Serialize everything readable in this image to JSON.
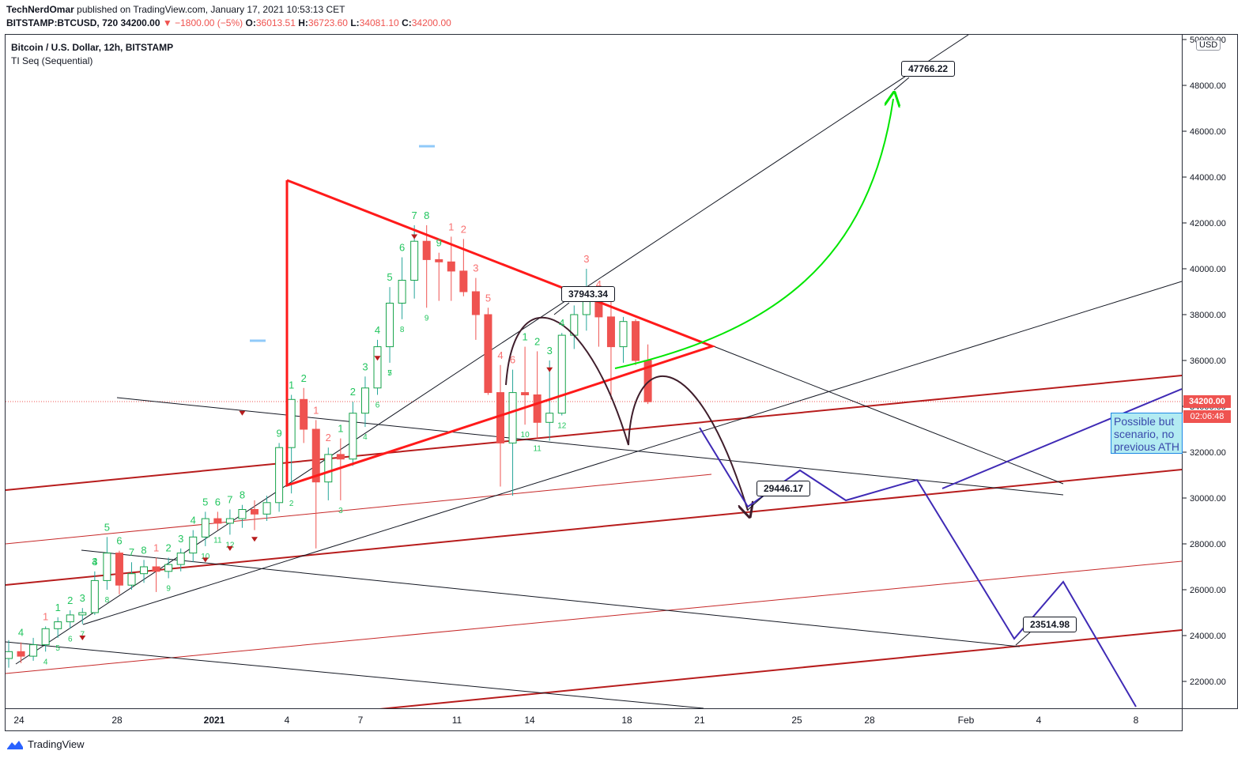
{
  "header": {
    "author": "TechNerdOmar",
    "published": "published on TradingView.com, January 17, 2021 10:53:13 CET",
    "symbol": "BITSTAMP:BTCUSD, 720",
    "last": "34200.00",
    "change": "▼ −1800.00 (−5%)",
    "o_label": "O:",
    "o": "36013.51",
    "h_label": "H:",
    "h": "36723.60",
    "l_label": "L:",
    "l": "34081.10",
    "c_label": "C:",
    "c": "34200.00"
  },
  "pane": {
    "title": "Bitcoin / U.S. Dollar, 12h, BITSTAMP",
    "indicator": "TI Seq (Sequential)"
  },
  "axis": {
    "currency": "USD",
    "y_ticks": [
      "50000.00",
      "48000.00",
      "46000.00",
      "44000.00",
      "42000.00",
      "40000.00",
      "38000.00",
      "36000.00",
      "34000.00",
      "32000.00",
      "30000.00",
      "28000.00",
      "26000.00",
      "24000.00",
      "22000.00"
    ],
    "x_ticks": [
      "24",
      "28",
      "2021",
      "4",
      "7",
      "11",
      "14",
      "18",
      "21",
      "25",
      "28",
      "Feb",
      "4",
      "8"
    ],
    "price_tag": "34200.00",
    "countdown": "02:06:48"
  },
  "annotations": {
    "target_high": "47766.22",
    "breakdown": "37943.34",
    "support_1": "29446.17",
    "support_2": "23514.98",
    "note_lines": [
      "Possible but",
      "scenario, no",
      "previous ATH"
    ]
  },
  "colors": {
    "bull": "#26a69a",
    "bear": "#ef5350",
    "triangle": "#ff1a1a",
    "channel": "#b71c1c",
    "path_bullish": "#00e600",
    "path_bearish": "#3f1d2b",
    "scenario": "#3f2ab5"
  },
  "footer": {
    "brand": "TradingView"
  },
  "chart_data": {
    "type": "candlestick",
    "title": "Bitcoin / U.S. Dollar, 12h, BITSTAMP",
    "y_range": [
      20500,
      50200
    ],
    "x_ticks": [
      "24",
      "28",
      "2021",
      "4",
      "7",
      "11",
      "14",
      "18",
      "21",
      "25",
      "28",
      "Feb",
      "4",
      "8"
    ],
    "candles": [
      {
        "o": 23000,
        "h": 23800,
        "l": 22600,
        "c": 23300
      },
      {
        "o": 23300,
        "h": 23700,
        "l": 22800,
        "c": 23100
      },
      {
        "o": 23100,
        "h": 23900,
        "l": 22900,
        "c": 23600
      },
      {
        "o": 23600,
        "h": 24400,
        "l": 23300,
        "c": 24300
      },
      {
        "o": 24300,
        "h": 24800,
        "l": 23900,
        "c": 24600
      },
      {
        "o": 24600,
        "h": 25100,
        "l": 24300,
        "c": 24900
      },
      {
        "o": 24900,
        "h": 25200,
        "l": 24500,
        "c": 25000
      },
      {
        "o": 25000,
        "h": 26800,
        "l": 24900,
        "c": 26400
      },
      {
        "o": 26400,
        "h": 28300,
        "l": 26000,
        "c": 27600
      },
      {
        "o": 27600,
        "h": 27700,
        "l": 25800,
        "c": 26200
      },
      {
        "o": 26200,
        "h": 27200,
        "l": 26000,
        "c": 26700
      },
      {
        "o": 26700,
        "h": 27300,
        "l": 26300,
        "c": 27000
      },
      {
        "o": 27000,
        "h": 27400,
        "l": 25900,
        "c": 26800
      },
      {
        "o": 26800,
        "h": 27400,
        "l": 26500,
        "c": 27100
      },
      {
        "o": 27100,
        "h": 27800,
        "l": 26800,
        "c": 27600
      },
      {
        "o": 27600,
        "h": 28600,
        "l": 27200,
        "c": 28300
      },
      {
        "o": 28300,
        "h": 29400,
        "l": 27900,
        "c": 29100
      },
      {
        "o": 29100,
        "h": 29400,
        "l": 28600,
        "c": 28900
      },
      {
        "o": 28900,
        "h": 29500,
        "l": 28400,
        "c": 29100
      },
      {
        "o": 29100,
        "h": 29700,
        "l": 28700,
        "c": 29500
      },
      {
        "o": 29500,
        "h": 29900,
        "l": 28600,
        "c": 29300
      },
      {
        "o": 29300,
        "h": 30100,
        "l": 29000,
        "c": 29800
      },
      {
        "o": 29800,
        "h": 32400,
        "l": 29400,
        "c": 32200
      },
      {
        "o": 32200,
        "h": 34500,
        "l": 30200,
        "c": 34300
      },
      {
        "o": 34300,
        "h": 34800,
        "l": 32400,
        "c": 33000
      },
      {
        "o": 33000,
        "h": 33400,
        "l": 27800,
        "c": 30700
      },
      {
        "o": 30700,
        "h": 32200,
        "l": 29900,
        "c": 31900
      },
      {
        "o": 31900,
        "h": 32600,
        "l": 29900,
        "c": 31700
      },
      {
        "o": 31700,
        "h": 34200,
        "l": 31400,
        "c": 33700
      },
      {
        "o": 33700,
        "h": 35300,
        "l": 33100,
        "c": 34800
      },
      {
        "o": 34800,
        "h": 36900,
        "l": 34500,
        "c": 36600
      },
      {
        "o": 36600,
        "h": 39200,
        "l": 35900,
        "c": 38500
      },
      {
        "o": 38500,
        "h": 40500,
        "l": 37800,
        "c": 39500
      },
      {
        "o": 39500,
        "h": 41900,
        "l": 38700,
        "c": 41200
      },
      {
        "o": 41200,
        "h": 41900,
        "l": 38300,
        "c": 40400
      },
      {
        "o": 40400,
        "h": 40700,
        "l": 38600,
        "c": 40300
      },
      {
        "o": 40300,
        "h": 41400,
        "l": 38600,
        "c": 39900
      },
      {
        "o": 39900,
        "h": 41300,
        "l": 38800,
        "c": 39000
      },
      {
        "o": 39000,
        "h": 39600,
        "l": 36900,
        "c": 38000
      },
      {
        "o": 38000,
        "h": 38300,
        "l": 34500,
        "c": 34600
      },
      {
        "o": 34600,
        "h": 35800,
        "l": 30500,
        "c": 32400
      },
      {
        "o": 32400,
        "h": 35600,
        "l": 30100,
        "c": 34600
      },
      {
        "o": 34600,
        "h": 36600,
        "l": 33200,
        "c": 34500
      },
      {
        "o": 34500,
        "h": 36400,
        "l": 32600,
        "c": 33300
      },
      {
        "o": 33300,
        "h": 36000,
        "l": 32500,
        "c": 33700
      },
      {
        "o": 33700,
        "h": 37200,
        "l": 33600,
        "c": 37100
      },
      {
        "o": 37100,
        "h": 38400,
        "l": 36500,
        "c": 38000
      },
      {
        "o": 38000,
        "h": 40000,
        "l": 37300,
        "c": 38800
      },
      {
        "o": 38800,
        "h": 38900,
        "l": 36600,
        "c": 37900
      },
      {
        "o": 37900,
        "h": 38600,
        "l": 34300,
        "c": 36600
      },
      {
        "o": 36600,
        "h": 37900,
        "l": 35900,
        "c": 37700
      },
      {
        "o": 37700,
        "h": 37800,
        "l": 35800,
        "c": 36000
      },
      {
        "o": 36000,
        "h": 36700,
        "l": 34100,
        "c": 34200
      }
    ],
    "levels": {
      "current": 34200,
      "target": 47766.22,
      "breakdown": 37943.34,
      "support_1": 29446.17,
      "support_2": 23514.98
    }
  }
}
